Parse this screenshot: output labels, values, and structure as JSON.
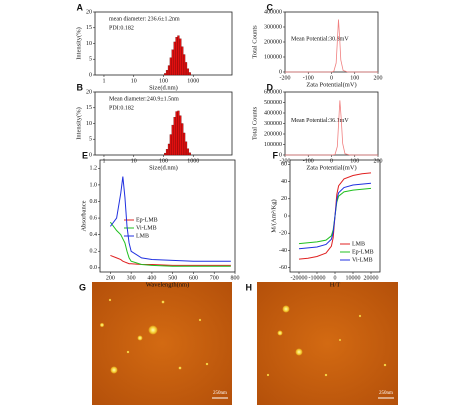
{
  "chart_data": [
    {
      "type": "histogram",
      "label": "A",
      "xlabel": "Size(d.nm)",
      "ylabel": "Intensity(%)",
      "xscale": "log",
      "annotations": [
        "mean diameter: 236.6±1.2nm",
        "PDI:0.182"
      ],
      "color": "#e01010",
      "bins": [
        106,
        122,
        142,
        164,
        190,
        220,
        255,
        295,
        342,
        396,
        459,
        531,
        615,
        712,
        825
      ],
      "values": [
        0.5,
        1.5,
        3,
        5.5,
        8,
        10.5,
        12,
        12.5,
        11.5,
        9,
        6.5,
        4,
        2,
        0.8
      ],
      "xlim": [
        0.5,
        20000
      ],
      "xticks": [
        1,
        10,
        100,
        1000
      ],
      "ylim": [
        0,
        20
      ],
      "yticks": [
        0,
        5,
        10,
        15,
        20
      ]
    },
    {
      "type": "histogram",
      "label": "B",
      "xlabel": "Size(d.nm)",
      "ylabel": "Intensity(%)",
      "xscale": "log",
      "annotations": [
        "Mean diameter:240.9±1.5nm",
        "PDI:0.182"
      ],
      "color": "#e01010",
      "bins": [
        106,
        122,
        142,
        164,
        190,
        220,
        255,
        295,
        342,
        396,
        459,
        531,
        615,
        712,
        825
      ],
      "values": [
        0.6,
        1.8,
        3.5,
        6.5,
        9.5,
        12,
        13.8,
        14,
        12.5,
        10,
        7,
        4.2,
        2,
        0.7
      ],
      "xlim": [
        0.5,
        20000
      ],
      "xticks": [
        1,
        10,
        100,
        1000
      ],
      "ylim": [
        0,
        20
      ],
      "yticks": [
        0,
        5,
        10,
        15,
        20
      ]
    },
    {
      "type": "line",
      "label": "C",
      "xlabel": "Zata Potential(mV)",
      "ylabel": "Total Counts",
      "annotations": [
        "Mean Potential:30.8mV"
      ],
      "color": "#f08080",
      "x": [
        -200,
        -50,
        0,
        10,
        20,
        25,
        30,
        35,
        40,
        50,
        70,
        100,
        200
      ],
      "values": [
        0,
        0,
        0,
        5000,
        60000,
        200000,
        350000,
        230000,
        80000,
        10000,
        0,
        0,
        0
      ],
      "xlim": [
        -200,
        200
      ],
      "xticks": [
        -200,
        -100,
        0,
        100,
        200
      ],
      "ylim": [
        0,
        400000
      ],
      "yticks": [
        0,
        100000,
        200000,
        300000,
        400000
      ]
    },
    {
      "type": "line",
      "label": "D",
      "xlabel": "Zata Potential(mV)",
      "ylabel": "Total Counts",
      "annotations": [
        "Mean Potential:36.1mV"
      ],
      "color": "#f08080",
      "x": [
        -200,
        -50,
        0,
        15,
        25,
        30,
        36,
        42,
        48,
        58,
        80,
        100,
        200
      ],
      "values": [
        0,
        0,
        0,
        5000,
        80000,
        280000,
        520000,
        340000,
        110000,
        12000,
        0,
        0,
        0
      ],
      "xlim": [
        -200,
        200
      ],
      "xticks": [
        -200,
        -100,
        0,
        100,
        200
      ],
      "ylim": [
        0,
        600000
      ],
      "yticks": [
        0,
        100000,
        200000,
        300000,
        400000,
        500000,
        600000
      ]
    },
    {
      "type": "multiline",
      "label": "E",
      "xlabel": "Wavelength(nm)",
      "ylabel": "Absorbance",
      "legend": "center left",
      "x": [
        200,
        230,
        250,
        260,
        270,
        280,
        290,
        300,
        350,
        400,
        500,
        600,
        700,
        780
      ],
      "series": [
        {
          "name": "Ep-LMB",
          "color": "#e02020",
          "values": [
            0.15,
            0.12,
            0.1,
            0.08,
            0.07,
            0.06,
            0.05,
            0.05,
            0.04,
            0.04,
            0.03,
            0.03,
            0.03,
            0.03
          ]
        },
        {
          "name": "Vi-LMB",
          "color": "#20c020",
          "values": [
            0.55,
            0.45,
            0.4,
            0.35,
            0.3,
            0.2,
            0.12,
            0.08,
            0.04,
            0.03,
            0.02,
            0.02,
            0.02,
            0.02
          ]
        },
        {
          "name": "LMB",
          "color": "#2030e0",
          "values": [
            0.5,
            0.6,
            0.9,
            1.1,
            0.85,
            0.5,
            0.3,
            0.2,
            0.12,
            0.1,
            0.09,
            0.08,
            0.08,
            0.08
          ]
        }
      ],
      "xlim": [
        150,
        800
      ],
      "xticks": [
        200,
        300,
        400,
        500,
        600,
        700,
        800
      ],
      "ylim": [
        -0.05,
        1.3
      ],
      "yticks": [
        {
          "value": 0,
          "label": "0.0"
        },
        0.2,
        0.4,
        0.6,
        0.8,
        {
          "value": 1,
          "label": "1.0"
        },
        1.2
      ]
    },
    {
      "type": "multiline",
      "label": "F",
      "xlabel": "H/T",
      "ylabel": "M/(Am²/Kg)",
      "legend": "lower right",
      "x": [
        -20000,
        -15000,
        -10000,
        -5000,
        -2000,
        -1000,
        0,
        1000,
        2000,
        5000,
        10000,
        15000,
        20000
      ],
      "series": [
        {
          "name": "LMB",
          "color": "#e02020",
          "values": [
            -50,
            -49,
            -47,
            -43,
            -35,
            -25,
            0,
            25,
            35,
            43,
            47,
            49,
            50
          ]
        },
        {
          "name": "Ep-LMB",
          "color": "#20c020",
          "values": [
            -32,
            -31,
            -30,
            -28,
            -23,
            -16,
            0,
            16,
            23,
            28,
            30,
            31,
            32
          ]
        },
        {
          "name": "Vi-LMB",
          "color": "#2030e0",
          "values": [
            -38,
            -37,
            -36,
            -33,
            -27,
            -19,
            0,
            19,
            27,
            33,
            36,
            37,
            38
          ]
        }
      ],
      "xlim": [
        -25000,
        25000
      ],
      "xticks": [
        -20000,
        -10000,
        0,
        10000,
        20000
      ],
      "ylim": [
        -65,
        65
      ],
      "yticks": [
        -60,
        -40,
        -20,
        0,
        20,
        40,
        60
      ]
    }
  ],
  "images": [
    {
      "label": "G",
      "scale": "250nm"
    },
    {
      "label": "H",
      "scale": "250nm"
    }
  ]
}
